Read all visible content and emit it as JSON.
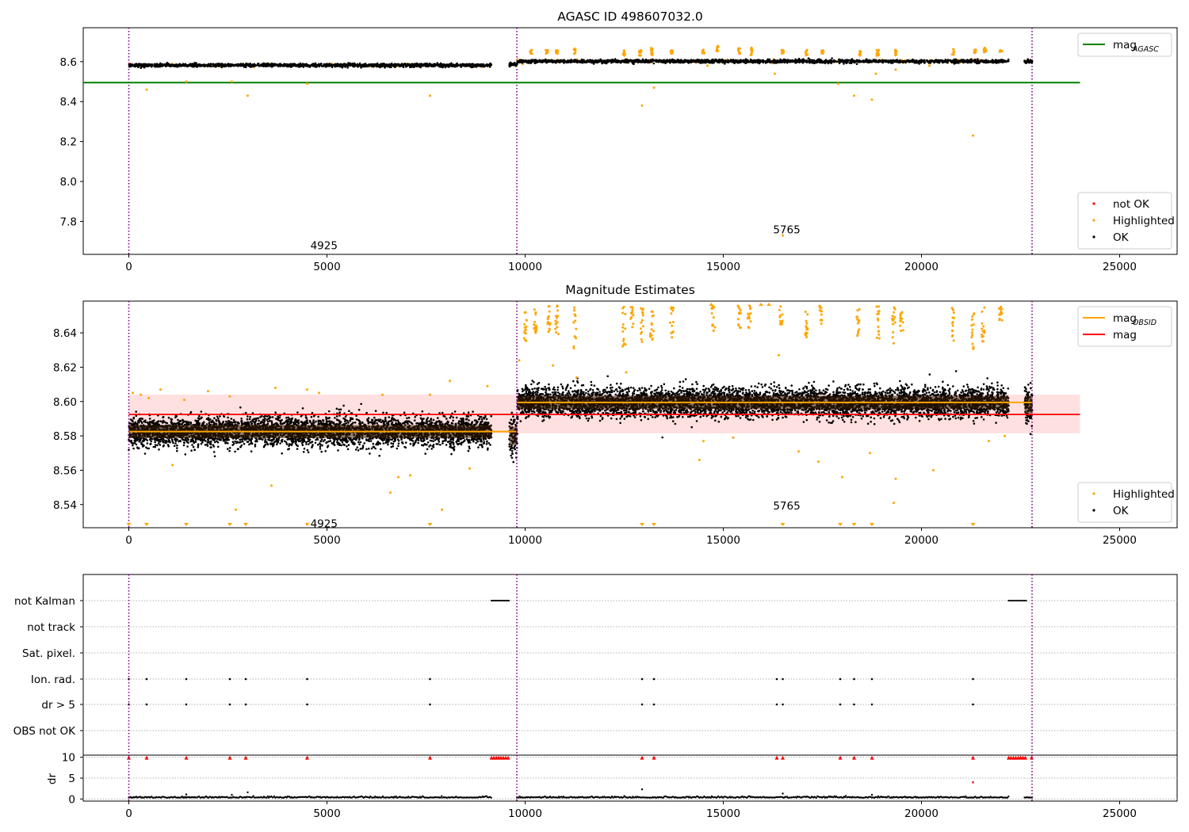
{
  "figure_title": "AGASC ID 498607032.0",
  "chart_data": [
    {
      "type": "scatter",
      "panel": "agasc",
      "title": "AGASC ID 498607032.0",
      "xlim": [
        -1150,
        26450
      ],
      "ylim": [
        7.635,
        8.77
      ],
      "xticks": [
        0,
        5000,
        10000,
        15000,
        20000,
        25000
      ],
      "yticks": [
        7.8,
        8.0,
        8.2,
        8.4,
        8.6
      ],
      "ytick_labels": [
        "7.8",
        "8.0",
        "8.2",
        "8.4",
        "8.6"
      ],
      "obsid_boundaries": [
        0,
        9790,
        22790
      ],
      "obsid_labels": [
        {
          "x": 4925,
          "y": 7.68,
          "text": "4925"
        },
        {
          "x": 16600,
          "y": 7.76,
          "text": "5765"
        }
      ],
      "hlines": [
        {
          "name": "mag_AGASC",
          "y": 8.495,
          "xrange": [
            -1150,
            24000
          ],
          "color": "#008000"
        }
      ],
      "series": [
        {
          "name": "not OK",
          "color": "#ff0000",
          "segments": [],
          "points": []
        },
        {
          "name": "Highlighted",
          "color": "#ffa500",
          "points": [
            [
              450,
              8.46
            ],
            [
              1450,
              8.5
            ],
            [
              2600,
              8.5
            ],
            [
              3000,
              8.43
            ],
            [
              4500,
              8.49
            ],
            [
              7600,
              8.43
            ],
            [
              12950,
              8.38
            ],
            [
              13250,
              8.47
            ],
            [
              14600,
              8.58
            ],
            [
              16300,
              8.54
            ],
            [
              17900,
              8.49
            ],
            [
              18300,
              8.43
            ],
            [
              18750,
              8.41
            ],
            [
              18850,
              8.54
            ],
            [
              19350,
              8.56
            ],
            [
              20200,
              8.58
            ],
            [
              21300,
              8.23
            ],
            [
              16500,
              7.73
            ]
          ],
          "clusters": [
            [
              10150,
              8.64,
              8.66
            ],
            [
              10550,
              8.64,
              8.66
            ],
            [
              10800,
              8.64,
              8.66
            ],
            [
              11250,
              8.63,
              8.67
            ],
            [
              12500,
              8.63,
              8.66
            ],
            [
              12900,
              8.63,
              8.66
            ],
            [
              13200,
              8.63,
              8.67
            ],
            [
              13700,
              8.64,
              8.66
            ],
            [
              14500,
              8.64,
              8.66
            ],
            [
              14850,
              8.65,
              8.68
            ],
            [
              15400,
              8.64,
              8.67
            ],
            [
              15700,
              8.63,
              8.67
            ],
            [
              16500,
              8.64,
              8.66
            ],
            [
              17100,
              8.63,
              8.66
            ],
            [
              17500,
              8.64,
              8.66
            ],
            [
              18450,
              8.63,
              8.66
            ],
            [
              18900,
              8.63,
              8.66
            ],
            [
              19350,
              8.63,
              8.66
            ],
            [
              20800,
              8.63,
              8.67
            ],
            [
              21350,
              8.64,
              8.66
            ],
            [
              21600,
              8.63,
              8.67
            ],
            [
              22000,
              8.65,
              8.66
            ]
          ]
        },
        {
          "name": "OK",
          "color": "#000000",
          "segments": [
            {
              "x0": 0,
              "x1": 9150,
              "y": 8.582,
              "spread": 0.008
            },
            {
              "x0": 9600,
              "x1": 9800,
              "y": 8.585,
              "spread": 0.012
            },
            {
              "x0": 9800,
              "x1": 22200,
              "y": 8.602,
              "spread": 0.008
            },
            {
              "x0": 22600,
              "x1": 22800,
              "y": 8.6,
              "spread": 0.01
            }
          ]
        }
      ],
      "legends": [
        {
          "position": "top-right",
          "entries": [
            {
              "label": "mag",
              "sub": "AGASC",
              "color": "#008000",
              "kind": "line"
            }
          ]
        },
        {
          "position": "bottom-right",
          "entries": [
            {
              "label": "not OK",
              "color": "#ff0000",
              "kind": "dot"
            },
            {
              "label": "Highlighted",
              "color": "#ffa500",
              "kind": "dot"
            },
            {
              "label": "OK",
              "color": "#000000",
              "kind": "dot"
            }
          ]
        }
      ]
    },
    {
      "type": "scatter",
      "panel": "estimates",
      "title": "Magnitude Estimates",
      "xlim": [
        -1150,
        26450
      ],
      "ylim": [
        8.5265,
        8.6585
      ],
      "xticks": [
        0,
        5000,
        10000,
        15000,
        20000,
        25000
      ],
      "yticks": [
        8.54,
        8.56,
        8.58,
        8.6,
        8.62,
        8.64
      ],
      "ytick_labels": [
        "8.54",
        "8.56",
        "8.58",
        "8.60",
        "8.62",
        "8.64"
      ],
      "obsid_boundaries": [
        0,
        9790,
        22790
      ],
      "obsid_labels": [
        {
          "x": 4925,
          "y": 8.529,
          "text": "4925"
        },
        {
          "x": 16600,
          "y": 8.5395,
          "text": "5765"
        }
      ],
      "band": {
        "y0": 8.5815,
        "y1": 8.604,
        "xrange": [
          0,
          24000
        ],
        "color": "#ffcccc"
      },
      "hlines": [
        {
          "name": "mag",
          "y": 8.5925,
          "xrange": [
            0,
            24000
          ],
          "color": "#ff0000"
        }
      ],
      "steps": [
        {
          "name": "mag_OBSID",
          "color": "#ffa500",
          "parts": [
            {
              "x0": 0,
              "x1": 9790,
              "y": 8.5825
            },
            {
              "x0": 9790,
              "x1": 22790,
              "y": 8.5995
            }
          ]
        }
      ],
      "series": [
        {
          "name": "Highlighted",
          "color": "#ffa500",
          "points": [
            [
              100,
              8.605
            ],
            [
              300,
              8.604
            ],
            [
              500,
              8.602
            ],
            [
              800,
              8.607
            ],
            [
              1100,
              8.563
            ],
            [
              1400,
              8.601
            ],
            [
              2000,
              8.606
            ],
            [
              2550,
              8.603
            ],
            [
              2700,
              8.537
            ],
            [
              3600,
              8.551
            ],
            [
              3700,
              8.608
            ],
            [
              4500,
              8.607
            ],
            [
              4800,
              8.605
            ],
            [
              6400,
              8.604
            ],
            [
              6600,
              8.547
            ],
            [
              6800,
              8.556
            ],
            [
              7100,
              8.557
            ],
            [
              7600,
              8.604
            ],
            [
              7900,
              8.537
            ],
            [
              8100,
              8.612
            ],
            [
              8600,
              8.561
            ],
            [
              9050,
              8.609
            ],
            [
              9850,
              8.624
            ],
            [
              10700,
              8.621
            ],
            [
              11300,
              8.614
            ],
            [
              12550,
              8.617
            ],
            [
              14400,
              8.566
            ],
            [
              14500,
              8.577
            ],
            [
              15250,
              8.579
            ],
            [
              16400,
              8.627
            ],
            [
              16900,
              8.571
            ],
            [
              17400,
              8.565
            ],
            [
              18000,
              8.556
            ],
            [
              18700,
              8.57
            ],
            [
              19350,
              8.555
            ],
            [
              19300,
              8.541
            ],
            [
              20300,
              8.56
            ],
            [
              21700,
              8.577
            ],
            [
              22100,
              8.58
            ]
          ],
          "clusters": [
            [
              10000,
              8.635,
              8.656
            ],
            [
              10250,
              8.64,
              8.656
            ],
            [
              10600,
              8.64,
              8.656
            ],
            [
              10800,
              8.638,
              8.656
            ],
            [
              11250,
              8.631,
              8.656
            ],
            [
              12500,
              8.632,
              8.656
            ],
            [
              12700,
              8.643,
              8.656
            ],
            [
              12950,
              8.633,
              8.656
            ],
            [
              13200,
              8.629,
              8.656
            ],
            [
              13700,
              8.636,
              8.656
            ],
            [
              14750,
              8.638,
              8.656
            ],
            [
              15400,
              8.643,
              8.656
            ],
            [
              15650,
              8.641,
              8.656
            ],
            [
              16450,
              8.645,
              8.656
            ],
            [
              17100,
              8.635,
              8.656
            ],
            [
              17450,
              8.645,
              8.656
            ],
            [
              18400,
              8.636,
              8.656
            ],
            [
              18900,
              8.636,
              8.656
            ],
            [
              19300,
              8.629,
              8.656
            ],
            [
              19500,
              8.64,
              8.656
            ],
            [
              20800,
              8.635,
              8.656
            ],
            [
              21300,
              8.63,
              8.656
            ],
            [
              21550,
              8.635,
              8.656
            ],
            [
              22000,
              8.645,
              8.656
            ]
          ],
          "markers_top": [
            14700,
            15950,
            16150
          ],
          "markers_bottom": [
            0,
            450,
            1450,
            2550,
            2950,
            4500,
            7600,
            12950,
            13250,
            16500,
            17950,
            18300,
            18750,
            21300
          ]
        },
        {
          "name": "OK",
          "color": "#000000",
          "segments": [
            {
              "x0": 0,
              "x1": 9150,
              "y": 8.5825,
              "spread": 0.0085
            },
            {
              "x0": 9600,
              "x1": 9800,
              "y": 8.58,
              "spread": 0.012
            },
            {
              "x0": 9800,
              "x1": 22200,
              "y": 8.5995,
              "spread": 0.0085
            },
            {
              "x0": 22600,
              "x1": 22800,
              "y": 8.598,
              "spread": 0.011
            }
          ]
        }
      ],
      "legends": [
        {
          "position": "top-right",
          "entries": [
            {
              "label": "mag",
              "sub": "OBSID",
              "color": "#ffa500",
              "kind": "line"
            },
            {
              "label": "mag",
              "sub": "",
              "color": "#ff0000",
              "kind": "line"
            }
          ]
        },
        {
          "position": "bottom-right",
          "entries": [
            {
              "label": "Highlighted",
              "color": "#ffa500",
              "kind": "dot"
            },
            {
              "label": "OK",
              "color": "#000000",
              "kind": "dot"
            }
          ]
        }
      ]
    },
    {
      "type": "scatter",
      "panel": "flags",
      "xlim": [
        -1150,
        26450
      ],
      "categories": [
        "not Kalman",
        "not track",
        "Sat. pixel.",
        "Ion. rad.",
        "dr > 5",
        "OBS not OK"
      ],
      "flag_points": {
        "not Kalman": {
          "ranges": [
            [
              9150,
              9600
            ],
            [
              22200,
              22650
            ]
          ],
          "points": []
        },
        "not track": {
          "ranges": [],
          "points": []
        },
        "Sat. pixel.": {
          "ranges": [],
          "points": []
        },
        "Ion. rad.": {
          "ranges": [],
          "points": [
            0,
            450,
            1450,
            2550,
            2950,
            4500,
            7600,
            12950,
            13250,
            16350,
            16500,
            17950,
            18300,
            18750,
            21300
          ]
        },
        "dr > 5": {
          "ranges": [],
          "points": [
            0,
            450,
            1450,
            2550,
            2950,
            4500,
            7600,
            12950,
            13250,
            16350,
            16500,
            17950,
            18300,
            18750,
            21300
          ]
        },
        "OBS not OK": {
          "ranges": [],
          "points": []
        }
      }
    },
    {
      "type": "scatter",
      "panel": "dr",
      "ylabel": "dr",
      "xlim": [
        -1150,
        26450
      ],
      "ylim": [
        -0.5,
        10.5
      ],
      "yticks": [
        0,
        5,
        10
      ],
      "ytick_labels": [
        "0",
        "5",
        "10"
      ],
      "xticks": [
        0,
        5000,
        10000,
        15000,
        20000,
        25000
      ],
      "red_markers": {
        "ranges": [
          [
            9150,
            9600
          ],
          [
            22200,
            22650
          ]
        ],
        "points": [
          0,
          450,
          1450,
          2550,
          2950,
          4500,
          7600,
          12950,
          13250,
          16350,
          16500,
          17950,
          18300,
          18750,
          21300,
          22780
        ]
      },
      "red_points": [
        [
          21300,
          4.0
        ]
      ],
      "black_segments": [
        {
          "x0": 0,
          "x1": 9150,
          "y": 0.3
        },
        {
          "x0": 9790,
          "x1": 22200,
          "y": 0.3
        },
        {
          "x0": 22600,
          "x1": 22800,
          "y": 0.3
        }
      ],
      "black_points": [
        [
          1450,
          1.1
        ],
        [
          2600,
          1.0
        ],
        [
          3000,
          1.6
        ],
        [
          12950,
          2.3
        ],
        [
          16500,
          1.3
        ],
        [
          18750,
          1.0
        ]
      ]
    }
  ]
}
